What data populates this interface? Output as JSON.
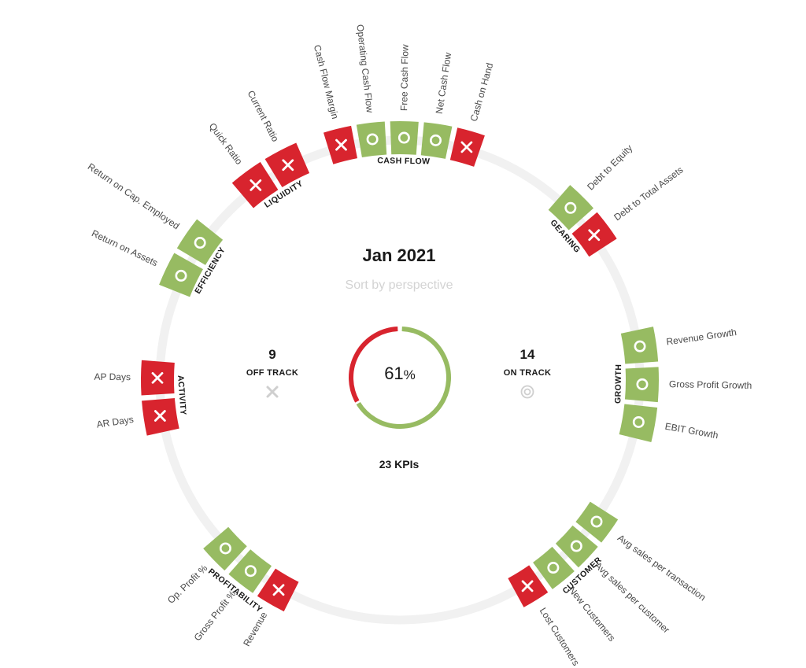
{
  "header": {
    "period": "Jan 2021",
    "sort_label": "Sort by perspective"
  },
  "summary": {
    "off_track_count": "9",
    "off_track_label": "OFF TRACK",
    "on_track_count": "14",
    "on_track_label": "ON TRACK",
    "percent_value": "61",
    "percent_unit": "%",
    "percent_on_track": 61,
    "total_label": "23 KPIs"
  },
  "colors": {
    "on_track": "#97bb62",
    "off_track": "#d8242e",
    "ring": "#f1f1f1",
    "text": "#1a1a1a",
    "muted": "#bdbdbd"
  },
  "perspectives": [
    {
      "name": "CASH FLOW",
      "kpis": [
        {
          "label": "Cash Flow Margin",
          "status": "off"
        },
        {
          "label": "Operating Cash Flow",
          "status": "on"
        },
        {
          "label": "Free Cash Flow",
          "status": "on"
        },
        {
          "label": "Net Cash Flow",
          "status": "on"
        },
        {
          "label": "Cash on Hand",
          "status": "off"
        }
      ]
    },
    {
      "name": "GEARING",
      "kpis": [
        {
          "label": "Debt to Equity",
          "status": "on"
        },
        {
          "label": "Debt to Total Assets",
          "status": "off"
        }
      ]
    },
    {
      "name": "GROWTH",
      "kpis": [
        {
          "label": "Revenue Growth",
          "status": "on"
        },
        {
          "label": "Gross Profit Growth",
          "status": "on"
        },
        {
          "label": "EBIT Growth",
          "status": "on"
        }
      ]
    },
    {
      "name": "CUSTOMER",
      "kpis": [
        {
          "label": "Avg sales per transaction",
          "status": "on"
        },
        {
          "label": "Avg sales per customer",
          "status": "on"
        },
        {
          "label": "New Customers",
          "status": "on"
        },
        {
          "label": "Lost Customers",
          "status": "off"
        }
      ]
    },
    {
      "name": "PROFITABILITY",
      "kpis": [
        {
          "label": "Revenue",
          "status": "off"
        },
        {
          "label": "Gross Profit %",
          "status": "on"
        },
        {
          "label": "Op. Profit %",
          "status": "on"
        }
      ]
    },
    {
      "name": "ACTIVITY",
      "kpis": [
        {
          "label": "AR Days",
          "status": "off"
        },
        {
          "label": "AP Days",
          "status": "off"
        }
      ]
    },
    {
      "name": "EFFICIENCY",
      "kpis": [
        {
          "label": "Return on Assets",
          "status": "on"
        },
        {
          "label": "Return on Cap. Employed",
          "status": "on"
        }
      ]
    },
    {
      "name": "LIQUIDITY",
      "kpis": [
        {
          "label": "Quick Ratio",
          "status": "off"
        },
        {
          "label": "Current Ratio",
          "status": "off"
        }
      ]
    }
  ]
}
